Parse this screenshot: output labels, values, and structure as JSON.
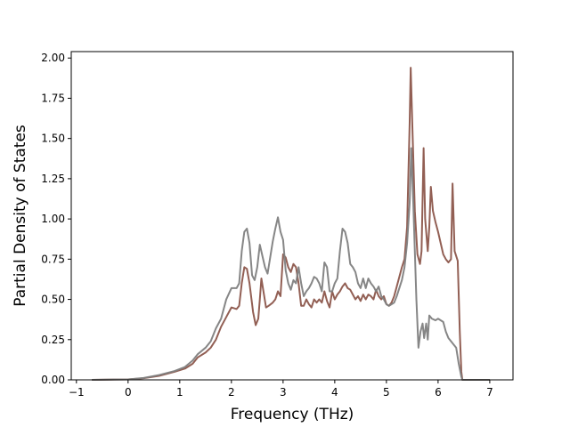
{
  "chart_data": {
    "type": "line",
    "title": "",
    "xlabel": "Frequency (THz)",
    "ylabel": "Partial Density of States",
    "xlim": [
      -1.1,
      7.45
    ],
    "ylim": [
      0,
      2.04
    ],
    "xticks": [
      -1,
      0,
      1,
      2,
      3,
      4,
      5,
      6,
      7
    ],
    "xtick_labels": [
      "−1",
      "0",
      "1",
      "2",
      "3",
      "4",
      "5",
      "6",
      "7"
    ],
    "yticks": [
      0,
      0.25,
      0.5,
      0.75,
      1.0,
      1.25,
      1.5,
      1.75,
      2.0
    ],
    "ytick_labels": [
      "0.00",
      "0.25",
      "0.50",
      "0.75",
      "1.00",
      "1.25",
      "1.50",
      "1.75",
      "2.00"
    ],
    "grid": false,
    "series": [
      {
        "color": "#8c564b",
        "points": [
          [
            -0.7,
            0
          ],
          [
            0,
            0.003
          ],
          [
            0.3,
            0.01
          ],
          [
            0.6,
            0.025
          ],
          [
            0.9,
            0.05
          ],
          [
            1.1,
            0.07
          ],
          [
            1.25,
            0.1
          ],
          [
            1.35,
            0.14
          ],
          [
            1.5,
            0.17
          ],
          [
            1.6,
            0.2
          ],
          [
            1.7,
            0.25
          ],
          [
            1.8,
            0.33
          ],
          [
            1.9,
            0.39
          ],
          [
            2.0,
            0.45
          ],
          [
            2.1,
            0.44
          ],
          [
            2.15,
            0.46
          ],
          [
            2.2,
            0.6
          ],
          [
            2.25,
            0.7
          ],
          [
            2.3,
            0.69
          ],
          [
            2.35,
            0.6
          ],
          [
            2.42,
            0.42
          ],
          [
            2.47,
            0.34
          ],
          [
            2.52,
            0.38
          ],
          [
            2.55,
            0.5
          ],
          [
            2.58,
            0.63
          ],
          [
            2.62,
            0.55
          ],
          [
            2.67,
            0.45
          ],
          [
            2.72,
            0.46
          ],
          [
            2.8,
            0.48
          ],
          [
            2.85,
            0.5
          ],
          [
            2.9,
            0.55
          ],
          [
            2.95,
            0.52
          ],
          [
            3.0,
            0.78
          ],
          [
            3.05,
            0.76
          ],
          [
            3.1,
            0.7
          ],
          [
            3.15,
            0.67
          ],
          [
            3.2,
            0.72
          ],
          [
            3.25,
            0.7
          ],
          [
            3.3,
            0.6
          ],
          [
            3.35,
            0.46
          ],
          [
            3.4,
            0.46
          ],
          [
            3.45,
            0.5
          ],
          [
            3.5,
            0.47
          ],
          [
            3.55,
            0.45
          ],
          [
            3.6,
            0.5
          ],
          [
            3.65,
            0.48
          ],
          [
            3.7,
            0.5
          ],
          [
            3.75,
            0.48
          ],
          [
            3.8,
            0.55
          ],
          [
            3.85,
            0.49
          ],
          [
            3.9,
            0.45
          ],
          [
            3.95,
            0.55
          ],
          [
            4.0,
            0.5
          ],
          [
            4.05,
            0.53
          ],
          [
            4.1,
            0.55
          ],
          [
            4.15,
            0.58
          ],
          [
            4.2,
            0.6
          ],
          [
            4.25,
            0.57
          ],
          [
            4.3,
            0.56
          ],
          [
            4.35,
            0.53
          ],
          [
            4.4,
            0.5
          ],
          [
            4.45,
            0.52
          ],
          [
            4.5,
            0.49
          ],
          [
            4.55,
            0.53
          ],
          [
            4.6,
            0.5
          ],
          [
            4.65,
            0.53
          ],
          [
            4.7,
            0.52
          ],
          [
            4.75,
            0.5
          ],
          [
            4.8,
            0.56
          ],
          [
            4.85,
            0.52
          ],
          [
            4.9,
            0.5
          ],
          [
            4.95,
            0.52
          ],
          [
            5.0,
            0.47
          ],
          [
            5.05,
            0.46
          ],
          [
            5.1,
            0.48
          ],
          [
            5.15,
            0.52
          ],
          [
            5.2,
            0.58
          ],
          [
            5.3,
            0.7
          ],
          [
            5.35,
            0.75
          ],
          [
            5.4,
            0.95
          ],
          [
            5.45,
            1.6
          ],
          [
            5.47,
            1.94
          ],
          [
            5.5,
            1.6
          ],
          [
            5.55,
            1.05
          ],
          [
            5.6,
            0.78
          ],
          [
            5.65,
            0.72
          ],
          [
            5.68,
            0.8
          ],
          [
            5.72,
            1.44
          ],
          [
            5.75,
            1.0
          ],
          [
            5.8,
            0.8
          ],
          [
            5.83,
            0.95
          ],
          [
            5.86,
            1.2
          ],
          [
            5.9,
            1.05
          ],
          [
            5.95,
            0.98
          ],
          [
            6.0,
            0.92
          ],
          [
            6.05,
            0.85
          ],
          [
            6.1,
            0.78
          ],
          [
            6.15,
            0.75
          ],
          [
            6.2,
            0.73
          ],
          [
            6.25,
            0.75
          ],
          [
            6.28,
            1.22
          ],
          [
            6.32,
            0.8
          ],
          [
            6.38,
            0.74
          ],
          [
            6.42,
            0.3
          ],
          [
            6.45,
            0.05
          ],
          [
            6.47,
            0
          ],
          [
            7.0,
            0
          ]
        ]
      },
      {
        "color": "#7f7f7f",
        "points": [
          [
            -0.7,
            0
          ],
          [
            0,
            0.003
          ],
          [
            0.3,
            0.012
          ],
          [
            0.6,
            0.03
          ],
          [
            0.9,
            0.055
          ],
          [
            1.1,
            0.08
          ],
          [
            1.25,
            0.12
          ],
          [
            1.35,
            0.16
          ],
          [
            1.5,
            0.2
          ],
          [
            1.6,
            0.24
          ],
          [
            1.7,
            0.32
          ],
          [
            1.8,
            0.38
          ],
          [
            1.9,
            0.5
          ],
          [
            2.0,
            0.57
          ],
          [
            2.1,
            0.57
          ],
          [
            2.15,
            0.6
          ],
          [
            2.2,
            0.8
          ],
          [
            2.25,
            0.92
          ],
          [
            2.3,
            0.94
          ],
          [
            2.35,
            0.85
          ],
          [
            2.4,
            0.65
          ],
          [
            2.45,
            0.62
          ],
          [
            2.5,
            0.7
          ],
          [
            2.55,
            0.84
          ],
          [
            2.6,
            0.77
          ],
          [
            2.65,
            0.7
          ],
          [
            2.7,
            0.66
          ],
          [
            2.75,
            0.76
          ],
          [
            2.8,
            0.86
          ],
          [
            2.85,
            0.94
          ],
          [
            2.9,
            1.01
          ],
          [
            2.95,
            0.92
          ],
          [
            3.0,
            0.87
          ],
          [
            3.05,
            0.68
          ],
          [
            3.1,
            0.6
          ],
          [
            3.15,
            0.56
          ],
          [
            3.2,
            0.62
          ],
          [
            3.25,
            0.6
          ],
          [
            3.3,
            0.7
          ],
          [
            3.35,
            0.6
          ],
          [
            3.4,
            0.52
          ],
          [
            3.45,
            0.55
          ],
          [
            3.5,
            0.57
          ],
          [
            3.55,
            0.6
          ],
          [
            3.6,
            0.64
          ],
          [
            3.65,
            0.63
          ],
          [
            3.7,
            0.6
          ],
          [
            3.75,
            0.55
          ],
          [
            3.8,
            0.73
          ],
          [
            3.85,
            0.7
          ],
          [
            3.9,
            0.55
          ],
          [
            3.95,
            0.55
          ],
          [
            4.0,
            0.6
          ],
          [
            4.05,
            0.63
          ],
          [
            4.1,
            0.8
          ],
          [
            4.15,
            0.94
          ],
          [
            4.2,
            0.92
          ],
          [
            4.25,
            0.85
          ],
          [
            4.3,
            0.72
          ],
          [
            4.35,
            0.7
          ],
          [
            4.4,
            0.67
          ],
          [
            4.45,
            0.6
          ],
          [
            4.5,
            0.57
          ],
          [
            4.55,
            0.63
          ],
          [
            4.6,
            0.57
          ],
          [
            4.65,
            0.63
          ],
          [
            4.7,
            0.6
          ],
          [
            4.75,
            0.58
          ],
          [
            4.8,
            0.55
          ],
          [
            4.85,
            0.58
          ],
          [
            4.9,
            0.52
          ],
          [
            4.95,
            0.5
          ],
          [
            5.0,
            0.47
          ],
          [
            5.05,
            0.46
          ],
          [
            5.1,
            0.47
          ],
          [
            5.15,
            0.48
          ],
          [
            5.2,
            0.52
          ],
          [
            5.3,
            0.62
          ],
          [
            5.35,
            0.7
          ],
          [
            5.4,
            0.85
          ],
          [
            5.45,
            1.1
          ],
          [
            5.48,
            1.44
          ],
          [
            5.52,
            1.1
          ],
          [
            5.58,
            0.5
          ],
          [
            5.62,
            0.2
          ],
          [
            5.66,
            0.3
          ],
          [
            5.7,
            0.35
          ],
          [
            5.73,
            0.26
          ],
          [
            5.77,
            0.35
          ],
          [
            5.8,
            0.25
          ],
          [
            5.83,
            0.4
          ],
          [
            5.88,
            0.38
          ],
          [
            5.95,
            0.37
          ],
          [
            6.0,
            0.38
          ],
          [
            6.1,
            0.36
          ],
          [
            6.15,
            0.3
          ],
          [
            6.2,
            0.26
          ],
          [
            6.25,
            0.24
          ],
          [
            6.3,
            0.22
          ],
          [
            6.35,
            0.2
          ],
          [
            6.4,
            0.1
          ],
          [
            6.45,
            0.02
          ],
          [
            6.47,
            0
          ],
          [
            7.0,
            0
          ]
        ]
      }
    ]
  }
}
